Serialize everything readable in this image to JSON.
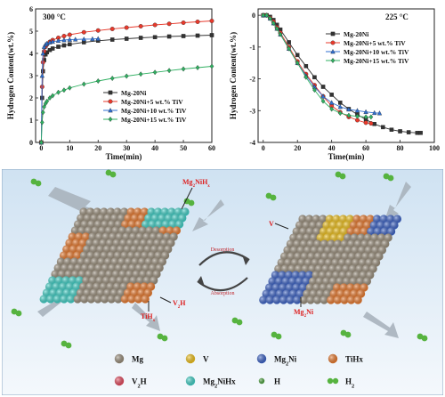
{
  "chart_data": [
    {
      "type": "line",
      "panel_label": "300 °C",
      "xlabel": "Time(min)",
      "ylabel": "Hydrogen Content(wt.%)",
      "xlim": [
        -2,
        60
      ],
      "ylim": [
        0,
        6
      ],
      "xticks": [
        0,
        10,
        20,
        30,
        40,
        50,
        60
      ],
      "yticks": [
        0,
        1,
        2,
        3,
        4,
        5,
        6
      ],
      "legend_position": "center-right",
      "series": [
        {
          "name": "Mg-20Ni",
          "color": "#333333",
          "marker": "square",
          "x": [
            0,
            0.3,
            0.6,
            1,
            1.5,
            2,
            3,
            4,
            6,
            8,
            10,
            15,
            20,
            25,
            30,
            35,
            40,
            45,
            50,
            55,
            60
          ],
          "y": [
            0,
            2.0,
            3.2,
            3.7,
            3.95,
            4.05,
            4.15,
            4.22,
            4.3,
            4.36,
            4.41,
            4.5,
            4.57,
            4.62,
            4.66,
            4.7,
            4.73,
            4.76,
            4.78,
            4.8,
            4.82
          ]
        },
        {
          "name": "Mg-20Ni+5 wt.% TiV",
          "color": "#e8392b",
          "marker": "circle",
          "x": [
            0,
            0.3,
            0.6,
            1,
            1.5,
            2,
            3,
            4,
            6,
            8,
            10,
            15,
            20,
            25,
            30,
            35,
            40,
            45,
            50,
            55,
            60
          ],
          "y": [
            0,
            2.5,
            3.6,
            4.1,
            4.3,
            4.4,
            4.52,
            4.6,
            4.7,
            4.78,
            4.84,
            4.95,
            5.03,
            5.1,
            5.16,
            5.22,
            5.28,
            5.33,
            5.38,
            5.42,
            5.46
          ]
        },
        {
          "name": "Mg-20Ni+10 wt.% TiV",
          "color": "#2f6fd0",
          "marker": "triangle",
          "x": [
            0,
            0.3,
            0.6,
            1,
            1.5,
            2,
            3,
            4,
            6,
            8,
            10,
            12,
            15,
            18,
            20
          ],
          "y": [
            0,
            3.0,
            4.0,
            4.3,
            4.4,
            4.45,
            4.5,
            4.53,
            4.57,
            4.6,
            4.62,
            4.63,
            4.64,
            4.65,
            4.66
          ]
        },
        {
          "name": "Mg-20Ni+15 wt.% TiV",
          "color": "#2fb061",
          "marker": "diamond",
          "x": [
            0,
            0.3,
            0.6,
            1,
            1.5,
            2,
            3,
            4,
            6,
            8,
            10,
            15,
            20,
            25,
            30,
            35,
            40,
            45,
            50,
            55,
            60
          ],
          "y": [
            0,
            0.9,
            1.35,
            1.6,
            1.75,
            1.85,
            2.0,
            2.1,
            2.25,
            2.35,
            2.45,
            2.62,
            2.76,
            2.88,
            2.98,
            3.07,
            3.15,
            3.23,
            3.3,
            3.36,
            3.42
          ]
        }
      ]
    },
    {
      "type": "line",
      "panel_label": "225 °C",
      "xlabel": "Time(min)",
      "ylabel": "Hydrogen Content(wt.%)",
      "xlim": [
        -3,
        100
      ],
      "ylim": [
        -4,
        0.2
      ],
      "xticks": [
        0,
        20,
        40,
        60,
        80,
        100
      ],
      "yticks": [
        0,
        -1,
        -2,
        -3,
        -4
      ],
      "legend_position": "top-right",
      "series": [
        {
          "name": "Mg-20Ni",
          "color": "#333333",
          "marker": "square",
          "x": [
            0,
            2,
            4,
            6,
            8,
            10,
            15,
            20,
            25,
            30,
            35,
            40,
            45,
            50,
            55,
            60,
            65,
            70,
            75,
            80,
            85,
            90,
            92
          ],
          "y": [
            0,
            0,
            -0.05,
            -0.15,
            -0.3,
            -0.45,
            -0.85,
            -1.25,
            -1.6,
            -1.95,
            -2.25,
            -2.5,
            -2.75,
            -2.95,
            -3.12,
            -3.28,
            -3.42,
            -3.52,
            -3.6,
            -3.65,
            -3.68,
            -3.7,
            -3.7
          ]
        },
        {
          "name": "Mg-20Ni+5 wt.% TiV",
          "color": "#e8392b",
          "marker": "circle",
          "x": [
            0,
            2,
            4,
            6,
            8,
            10,
            15,
            20,
            25,
            30,
            35,
            40,
            45,
            50,
            55,
            60,
            63
          ],
          "y": [
            0,
            0,
            -0.08,
            -0.2,
            -0.38,
            -0.55,
            -1.0,
            -1.45,
            -1.85,
            -2.2,
            -2.55,
            -2.85,
            -3.05,
            -3.2,
            -3.3,
            -3.38,
            -3.4
          ]
        },
        {
          "name": "Mg-20Ni+10 wt.% TiV",
          "color": "#2f6fd0",
          "marker": "triangle",
          "x": [
            0,
            2,
            4,
            6,
            8,
            10,
            15,
            20,
            25,
            30,
            35,
            40,
            45,
            50,
            55,
            60,
            65,
            68
          ],
          "y": [
            0,
            0,
            -0.1,
            -0.25,
            -0.42,
            -0.6,
            -1.05,
            -1.5,
            -1.9,
            -2.25,
            -2.55,
            -2.75,
            -2.88,
            -2.96,
            -3.0,
            -3.04,
            -3.07,
            -3.08
          ]
        },
        {
          "name": "Mg-20Ni+15 wt.% TiV",
          "color": "#2fb061",
          "marker": "diamond",
          "x": [
            0,
            2,
            4,
            6,
            8,
            10,
            15,
            20,
            25,
            30,
            35,
            40,
            45,
            50,
            55,
            60,
            63
          ],
          "y": [
            0,
            0,
            -0.1,
            -0.25,
            -0.42,
            -0.6,
            -1.05,
            -1.5,
            -1.95,
            -2.35,
            -2.7,
            -2.95,
            -3.08,
            -3.15,
            -3.18,
            -3.2,
            -3.2
          ]
        }
      ]
    }
  ],
  "scheme": {
    "left_labels": {
      "top": "Mg2NiHx",
      "v2h": "V2H",
      "tihx": "TiHx"
    },
    "right_labels": {
      "v": "V",
      "mg2ni": "Mg2Ni"
    },
    "arrow_top": "Desorption",
    "arrow_bottom": "Absorption",
    "legend": [
      {
        "label": "Mg",
        "color": "#9b8f7c"
      },
      {
        "label": "V",
        "color": "#f3c31a"
      },
      {
        "label": "Mg2Ni",
        "color": "#3b63c9"
      },
      {
        "label": "TiHx",
        "color": "#ec7a2c"
      },
      {
        "label": "V2H",
        "color": "#e84a5e"
      },
      {
        "label": "Mg2NiHx",
        "color": "#3fd3c9"
      },
      {
        "label": "H",
        "color": "#4aa33b"
      },
      {
        "label": "H2",
        "color": "#56b33f"
      }
    ]
  }
}
